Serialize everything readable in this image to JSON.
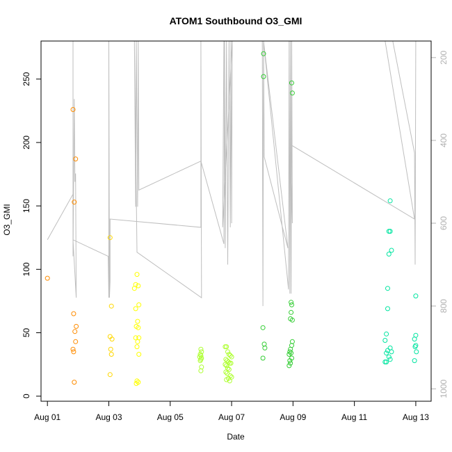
{
  "chart_data": {
    "type": "scatter",
    "title": "ATOM1 Southbound O3_GMI",
    "xlabel": "Date",
    "ylabel": "O3_GMI",
    "x_axis": {
      "type": "date",
      "min": "2016-07-31T19:00",
      "max": "2016-08-13T12:00",
      "tick_labels": [
        "Aug 01",
        "Aug 03",
        "Aug 05",
        "Aug 07",
        "Aug 09",
        "Aug 11",
        "Aug 13"
      ],
      "tick_dates": [
        "2016-08-01",
        "2016-08-03",
        "2016-08-05",
        "2016-08-07",
        "2016-08-09",
        "2016-08-11",
        "2016-08-13"
      ]
    },
    "y_axis": {
      "min": -4,
      "max": 280,
      "ticks": [
        0,
        50,
        100,
        150,
        200,
        250
      ]
    },
    "y2_axis": {
      "label": "",
      "color": "#b0b0b0",
      "min": 1030,
      "max": 160,
      "reversed": true,
      "ticks": [
        200,
        400,
        600,
        800,
        1000
      ]
    },
    "grid": false,
    "legend": "none",
    "series": [
      {
        "color": "#ff8c00",
        "points": [
          [
            "2016-08-01T00:00",
            93
          ],
          [
            "2016-08-01T20:00",
            226
          ],
          [
            "2016-08-01T21:00",
            153
          ],
          [
            "2016-08-01T22:00",
            187
          ],
          [
            "2016-08-01T20:30",
            65
          ],
          [
            "2016-08-01T22:30",
            55
          ],
          [
            "2016-08-01T21:30",
            51
          ],
          [
            "2016-08-01T22:00",
            43
          ],
          [
            "2016-08-01T20:00",
            37
          ],
          [
            "2016-08-01T20:30",
            35
          ],
          [
            "2016-08-01T21:00",
            11
          ]
        ]
      },
      {
        "color": "#ffd700",
        "points": [
          [
            "2016-08-03T01:00",
            125
          ],
          [
            "2016-08-03T02:00",
            71
          ],
          [
            "2016-08-03T01:00",
            47
          ],
          [
            "2016-08-03T02:30",
            45
          ],
          [
            "2016-08-03T01:30",
            37
          ],
          [
            "2016-08-03T02:00",
            33
          ],
          [
            "2016-08-03T01:00",
            17
          ]
        ]
      },
      {
        "color": "#ffff00",
        "points": [
          [
            "2016-08-03T21:00",
            88
          ],
          [
            "2016-08-03T20:00",
            85
          ],
          [
            "2016-08-03T23:00",
            87
          ],
          [
            "2016-08-03T22:00",
            96
          ],
          [
            "2016-08-03T23:30",
            72
          ],
          [
            "2016-08-03T21:00",
            69
          ],
          [
            "2016-08-03T22:30",
            59
          ],
          [
            "2016-08-03T21:30",
            55
          ],
          [
            "2016-08-03T23:00",
            54
          ],
          [
            "2016-08-03T21:00",
            46
          ],
          [
            "2016-08-03T23:30",
            46
          ],
          [
            "2016-08-03T22:30",
            43
          ],
          [
            "2016-08-03T22:00",
            39
          ],
          [
            "2016-08-03T23:30",
            33
          ],
          [
            "2016-08-03T22:00",
            12
          ],
          [
            "2016-08-03T23:00",
            11
          ],
          [
            "2016-08-03T21:30",
            10
          ]
        ]
      },
      {
        "color": "#adff2f",
        "points": [
          [
            "2016-08-06T00:00",
            37
          ],
          [
            "2016-08-06T00:30",
            35
          ],
          [
            "2016-08-05T23:30",
            33
          ],
          [
            "2016-08-06T00:00",
            32
          ],
          [
            "2016-08-05T23:00",
            31
          ],
          [
            "2016-08-06T00:30",
            30
          ],
          [
            "2016-08-06T00:00",
            29
          ],
          [
            "2016-08-05T23:30",
            28
          ],
          [
            "2016-08-06T00:30",
            23
          ],
          [
            "2016-08-06T00:00",
            20
          ],
          [
            "2016-08-06T19:00",
            39
          ],
          [
            "2016-08-06T20:00",
            39
          ],
          [
            "2016-08-06T21:00",
            35
          ],
          [
            "2016-08-06T22:00",
            33
          ],
          [
            "2016-08-06T23:00",
            32
          ],
          [
            "2016-08-07T00:00",
            31
          ],
          [
            "2016-08-06T19:30",
            29
          ],
          [
            "2016-08-06T20:30",
            28
          ],
          [
            "2016-08-06T21:30",
            27
          ],
          [
            "2016-08-06T22:30",
            26
          ],
          [
            "2016-08-06T23:30",
            26
          ],
          [
            "2016-08-06T19:00",
            25
          ],
          [
            "2016-08-06T20:00",
            24
          ],
          [
            "2016-08-06T21:00",
            22
          ],
          [
            "2016-08-06T22:00",
            21
          ],
          [
            "2016-08-06T19:30",
            19
          ],
          [
            "2016-08-06T20:30",
            18
          ],
          [
            "2016-08-06T23:00",
            16
          ],
          [
            "2016-08-07T00:00",
            15
          ],
          [
            "2016-08-06T21:30",
            14
          ],
          [
            "2016-08-06T20:00",
            13
          ],
          [
            "2016-08-06T22:30",
            12
          ]
        ]
      },
      {
        "color": "#32cd32",
        "points": [
          [
            "2016-08-08T01:00",
            270
          ],
          [
            "2016-08-08T01:00",
            252
          ],
          [
            "2016-08-08T00:30",
            54
          ],
          [
            "2016-08-08T01:30",
            41
          ],
          [
            "2016-08-08T02:00",
            38
          ],
          [
            "2016-08-08T00:30",
            30
          ],
          [
            "2016-08-08T23:00",
            247
          ],
          [
            "2016-08-08T23:30",
            239
          ],
          [
            "2016-08-08T22:30",
            74
          ],
          [
            "2016-08-08T23:00",
            72
          ],
          [
            "2016-08-08T22:30",
            66
          ],
          [
            "2016-08-08T22:00",
            61
          ],
          [
            "2016-08-08T23:30",
            60
          ],
          [
            "2016-08-08T23:30",
            43
          ],
          [
            "2016-08-08T23:00",
            40
          ],
          [
            "2016-08-08T22:00",
            37
          ],
          [
            "2016-08-08T21:30",
            35
          ],
          [
            "2016-08-08T22:30",
            34
          ],
          [
            "2016-08-08T21:00",
            33
          ],
          [
            "2016-08-08T23:00",
            30
          ],
          [
            "2016-08-08T21:30",
            28
          ],
          [
            "2016-08-08T22:00",
            26
          ],
          [
            "2016-08-08T21:00",
            24
          ]
        ]
      },
      {
        "color": "#00e5a0",
        "points": [
          [
            "2016-08-12T04:00",
            154
          ],
          [
            "2016-08-12T03:00",
            130
          ],
          [
            "2016-08-12T04:00",
            130
          ],
          [
            "2016-08-12T05:00",
            115
          ],
          [
            "2016-08-12T03:00",
            112
          ],
          [
            "2016-08-12T02:00",
            85
          ],
          [
            "2016-08-12T02:00",
            69
          ],
          [
            "2016-08-12T01:00",
            49
          ],
          [
            "2016-08-12T00:00",
            44
          ],
          [
            "2016-08-12T04:00",
            38
          ],
          [
            "2016-08-12T02:00",
            36
          ],
          [
            "2016-08-12T01:00",
            34
          ],
          [
            "2016-08-12T05:00",
            35
          ],
          [
            "2016-08-12T03:00",
            31
          ],
          [
            "2016-08-12T04:00",
            29
          ],
          [
            "2016-08-12T00:00",
            27
          ],
          [
            "2016-08-12T01:00",
            27
          ],
          [
            "2016-08-13T00:00",
            79
          ],
          [
            "2016-08-13T00:00",
            48
          ],
          [
            "2016-08-12T23:00",
            45
          ],
          [
            "2016-08-13T00:00",
            40
          ],
          [
            "2016-08-12T23:30",
            39
          ],
          [
            "2016-08-13T00:30",
            35
          ],
          [
            "2016-08-12T23:00",
            28
          ]
        ]
      }
    ],
    "pressure_trace": {
      "axis": "y2",
      "color": "#bebebe",
      "points": [
        [
          "2016-08-01T00:00",
          640
        ],
        [
          "2016-08-01T20:00",
          530
        ],
        [
          "2016-08-01T20:00",
          160
        ],
        [
          "2016-08-01T20:00",
          680
        ],
        [
          "2016-08-01T21:00",
          300
        ],
        [
          "2016-08-01T21:30",
          500
        ],
        [
          "2016-08-01T22:00",
          480
        ],
        [
          "2016-08-01T22:30",
          780
        ],
        [
          "2016-08-01T20:00",
          640
        ],
        [
          "2016-08-02T23:30",
          680
        ],
        [
          "2016-08-03T00:00",
          780
        ],
        [
          "2016-08-03T00:00",
          160
        ],
        [
          "2016-08-03T00:30",
          780
        ],
        [
          "2016-08-03T01:00",
          740
        ],
        [
          "2016-08-03T01:00",
          590
        ],
        [
          "2016-08-06T00:00",
          610
        ],
        [
          "2016-08-06T00:00",
          160
        ],
        [
          "2016-08-06T00:30",
          780
        ],
        [
          "2016-08-03T22:00",
          670
        ],
        [
          "2016-08-03T20:00",
          160
        ],
        [
          "2016-08-03T21:00",
          560
        ],
        [
          "2016-08-03T21:30",
          160
        ],
        [
          "2016-08-03T22:30",
          560
        ],
        [
          "2016-08-03T23:00",
          160
        ],
        [
          "2016-08-03T23:30",
          520
        ],
        [
          "2016-08-06T00:00",
          450
        ],
        [
          "2016-08-06T18:00",
          650
        ],
        [
          "2016-08-06T18:30",
          160
        ],
        [
          "2016-08-06T19:00",
          660
        ],
        [
          "2016-08-06T20:00",
          160
        ],
        [
          "2016-08-06T21:00",
          700
        ],
        [
          "2016-08-06T22:00",
          160
        ],
        [
          "2016-08-06T23:00",
          610
        ],
        [
          "2016-08-06T23:30",
          160
        ],
        [
          "2016-08-07T00:00",
          600
        ],
        [
          "2016-08-07T00:30",
          160
        ],
        [
          "2016-08-06T17:00",
          610
        ],
        [
          "2016-08-06T18:00",
          160
        ],
        [
          "2016-08-07T00:30",
          160
        ],
        [
          "2016-08-08T00:00",
          160
        ],
        [
          "2016-08-08T00:30",
          800
        ],
        [
          "2016-08-08T01:00",
          160
        ],
        [
          "2016-08-08T01:30",
          440
        ],
        [
          "2016-08-08T20:00",
          660
        ],
        [
          "2016-08-08T01:00",
          160
        ],
        [
          "2016-08-08T20:30",
          760
        ],
        [
          "2016-08-08T21:00",
          160
        ],
        [
          "2016-08-08T21:30",
          770
        ],
        [
          "2016-08-08T22:00",
          160
        ],
        [
          "2016-08-08T22:30",
          770
        ],
        [
          "2016-08-08T23:00",
          160
        ],
        [
          "2016-08-08T23:30",
          600
        ],
        [
          "2016-08-08T22:00",
          410
        ],
        [
          "2016-08-12T23:00",
          590
        ],
        [
          "2016-08-12T00:00",
          160
        ],
        [
          "2016-08-12T01:00",
          160
        ],
        [
          "2016-08-12T02:00",
          160
        ],
        [
          "2016-08-12T03:00",
          160
        ],
        [
          "2016-08-12T04:00",
          160
        ],
        [
          "2016-08-12T06:00",
          160
        ],
        [
          "2016-08-12T23:00",
          430
        ],
        [
          "2016-08-12T23:30",
          700
        ],
        [
          "2016-08-13T00:00",
          160
        ]
      ]
    }
  }
}
